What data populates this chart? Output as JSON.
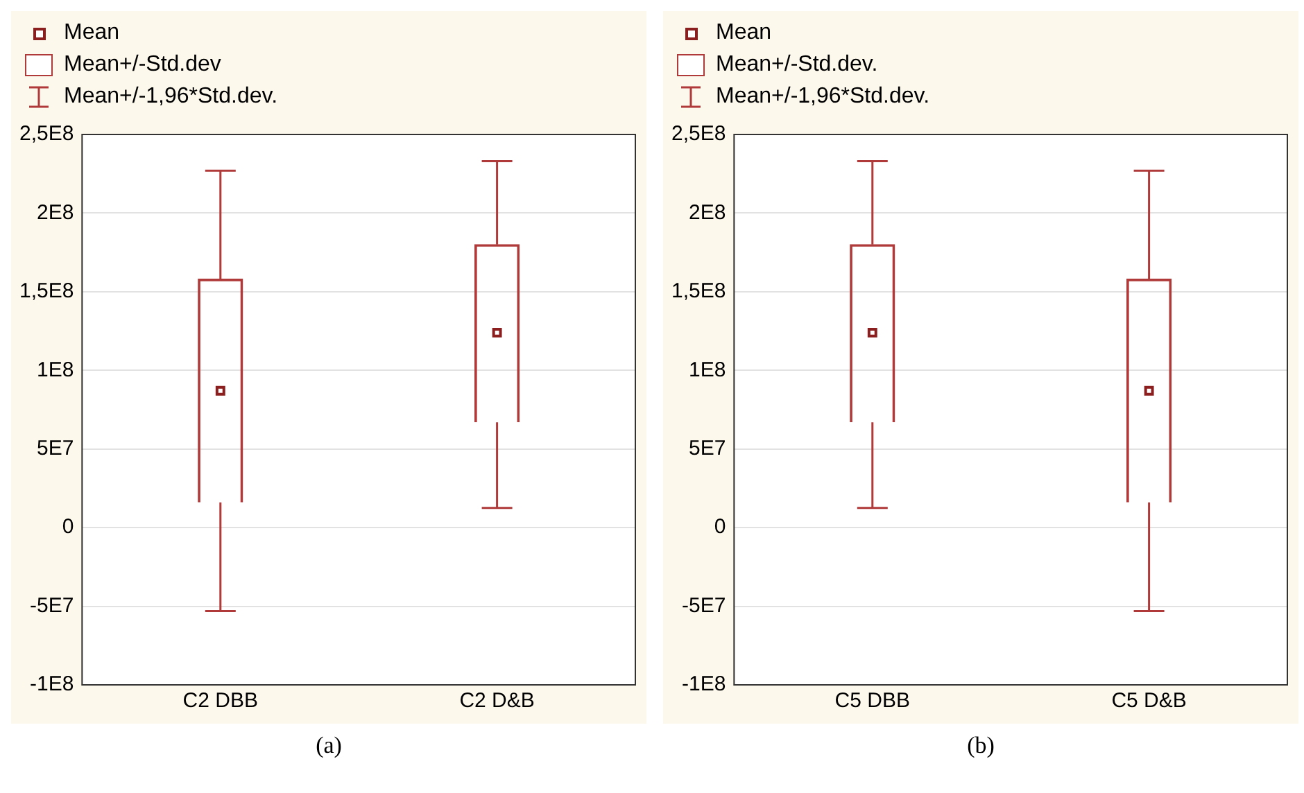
{
  "chart_data": [
    {
      "type": "bar",
      "categories": [
        "C2 DBB",
        "C2 D&B"
      ],
      "legend": "top left",
      "grid": "y",
      "annotations": [
        "(a)"
      ],
      "ylim": [
        -100000000,
        250000000
      ],
      "yticks": [
        {
          "value": -100000000,
          "label": "-1E8"
        },
        {
          "value": -50000000,
          "label": "-5E7"
        },
        0,
        {
          "value": 50000000,
          "label": "5E7"
        },
        {
          "value": 100000000,
          "label": "1E8"
        },
        {
          "value": 150000000,
          "label": "1,5E8"
        },
        {
          "value": 200000000,
          "label": "2E8"
        },
        {
          "value": 250000000,
          "label": "2,5E8"
        }
      ],
      "series": [
        {
          "name": "Mean",
          "type": "scatter",
          "marker": "square",
          "color": "#8b1e1e",
          "values": [
            87000000,
            124000000
          ],
          "errors": [
            [
              -53000000,
              227000000
            ],
            [
              12500000,
              233000000
            ]
          ]
        },
        {
          "name": "Mean+/-Std.dev",
          "type": "bar",
          "color": "#b03a3a",
          "base": [
            16000000,
            67000000
          ],
          "values": [
            142000000,
            113000000
          ]
        },
        {
          "name": "Mean+/-1,96*Std.dev.",
          "type": "scatter",
          "marker": "none",
          "color": "#b03a3a",
          "values": [
            null,
            null
          ]
        }
      ]
    },
    {
      "type": "bar",
      "categories": [
        "C5 DBB",
        "C5 D&B"
      ],
      "legend": "top left",
      "grid": "y",
      "annotations": [
        "(b)"
      ],
      "ylim": [
        -100000000,
        250000000
      ],
      "yticks": [
        {
          "value": -100000000,
          "label": "-1E8"
        },
        {
          "value": -50000000,
          "label": "-5E7"
        },
        0,
        {
          "value": 50000000,
          "label": "5E7"
        },
        {
          "value": 100000000,
          "label": "1E8"
        },
        {
          "value": 150000000,
          "label": "1,5E8"
        },
        {
          "value": 200000000,
          "label": "2E8"
        },
        {
          "value": 250000000,
          "label": "2,5E8"
        }
      ],
      "series": [
        {
          "name": "Mean",
          "type": "scatter",
          "marker": "square",
          "color": "#8b1e1e",
          "values": [
            124000000,
            87000000
          ],
          "errors": [
            [
              12500000,
              233000000
            ],
            [
              -53000000,
              227000000
            ]
          ]
        },
        {
          "name": "Mean+/-Std.dev.",
          "type": "bar",
          "color": "#b03a3a",
          "base": [
            67000000,
            16000000
          ],
          "values": [
            113000000,
            142000000
          ]
        },
        {
          "name": "Mean+/-1,96*Std.dev.",
          "type": "scatter",
          "marker": "none",
          "color": "#b03a3a",
          "values": [
            null,
            null
          ]
        }
      ]
    }
  ]
}
